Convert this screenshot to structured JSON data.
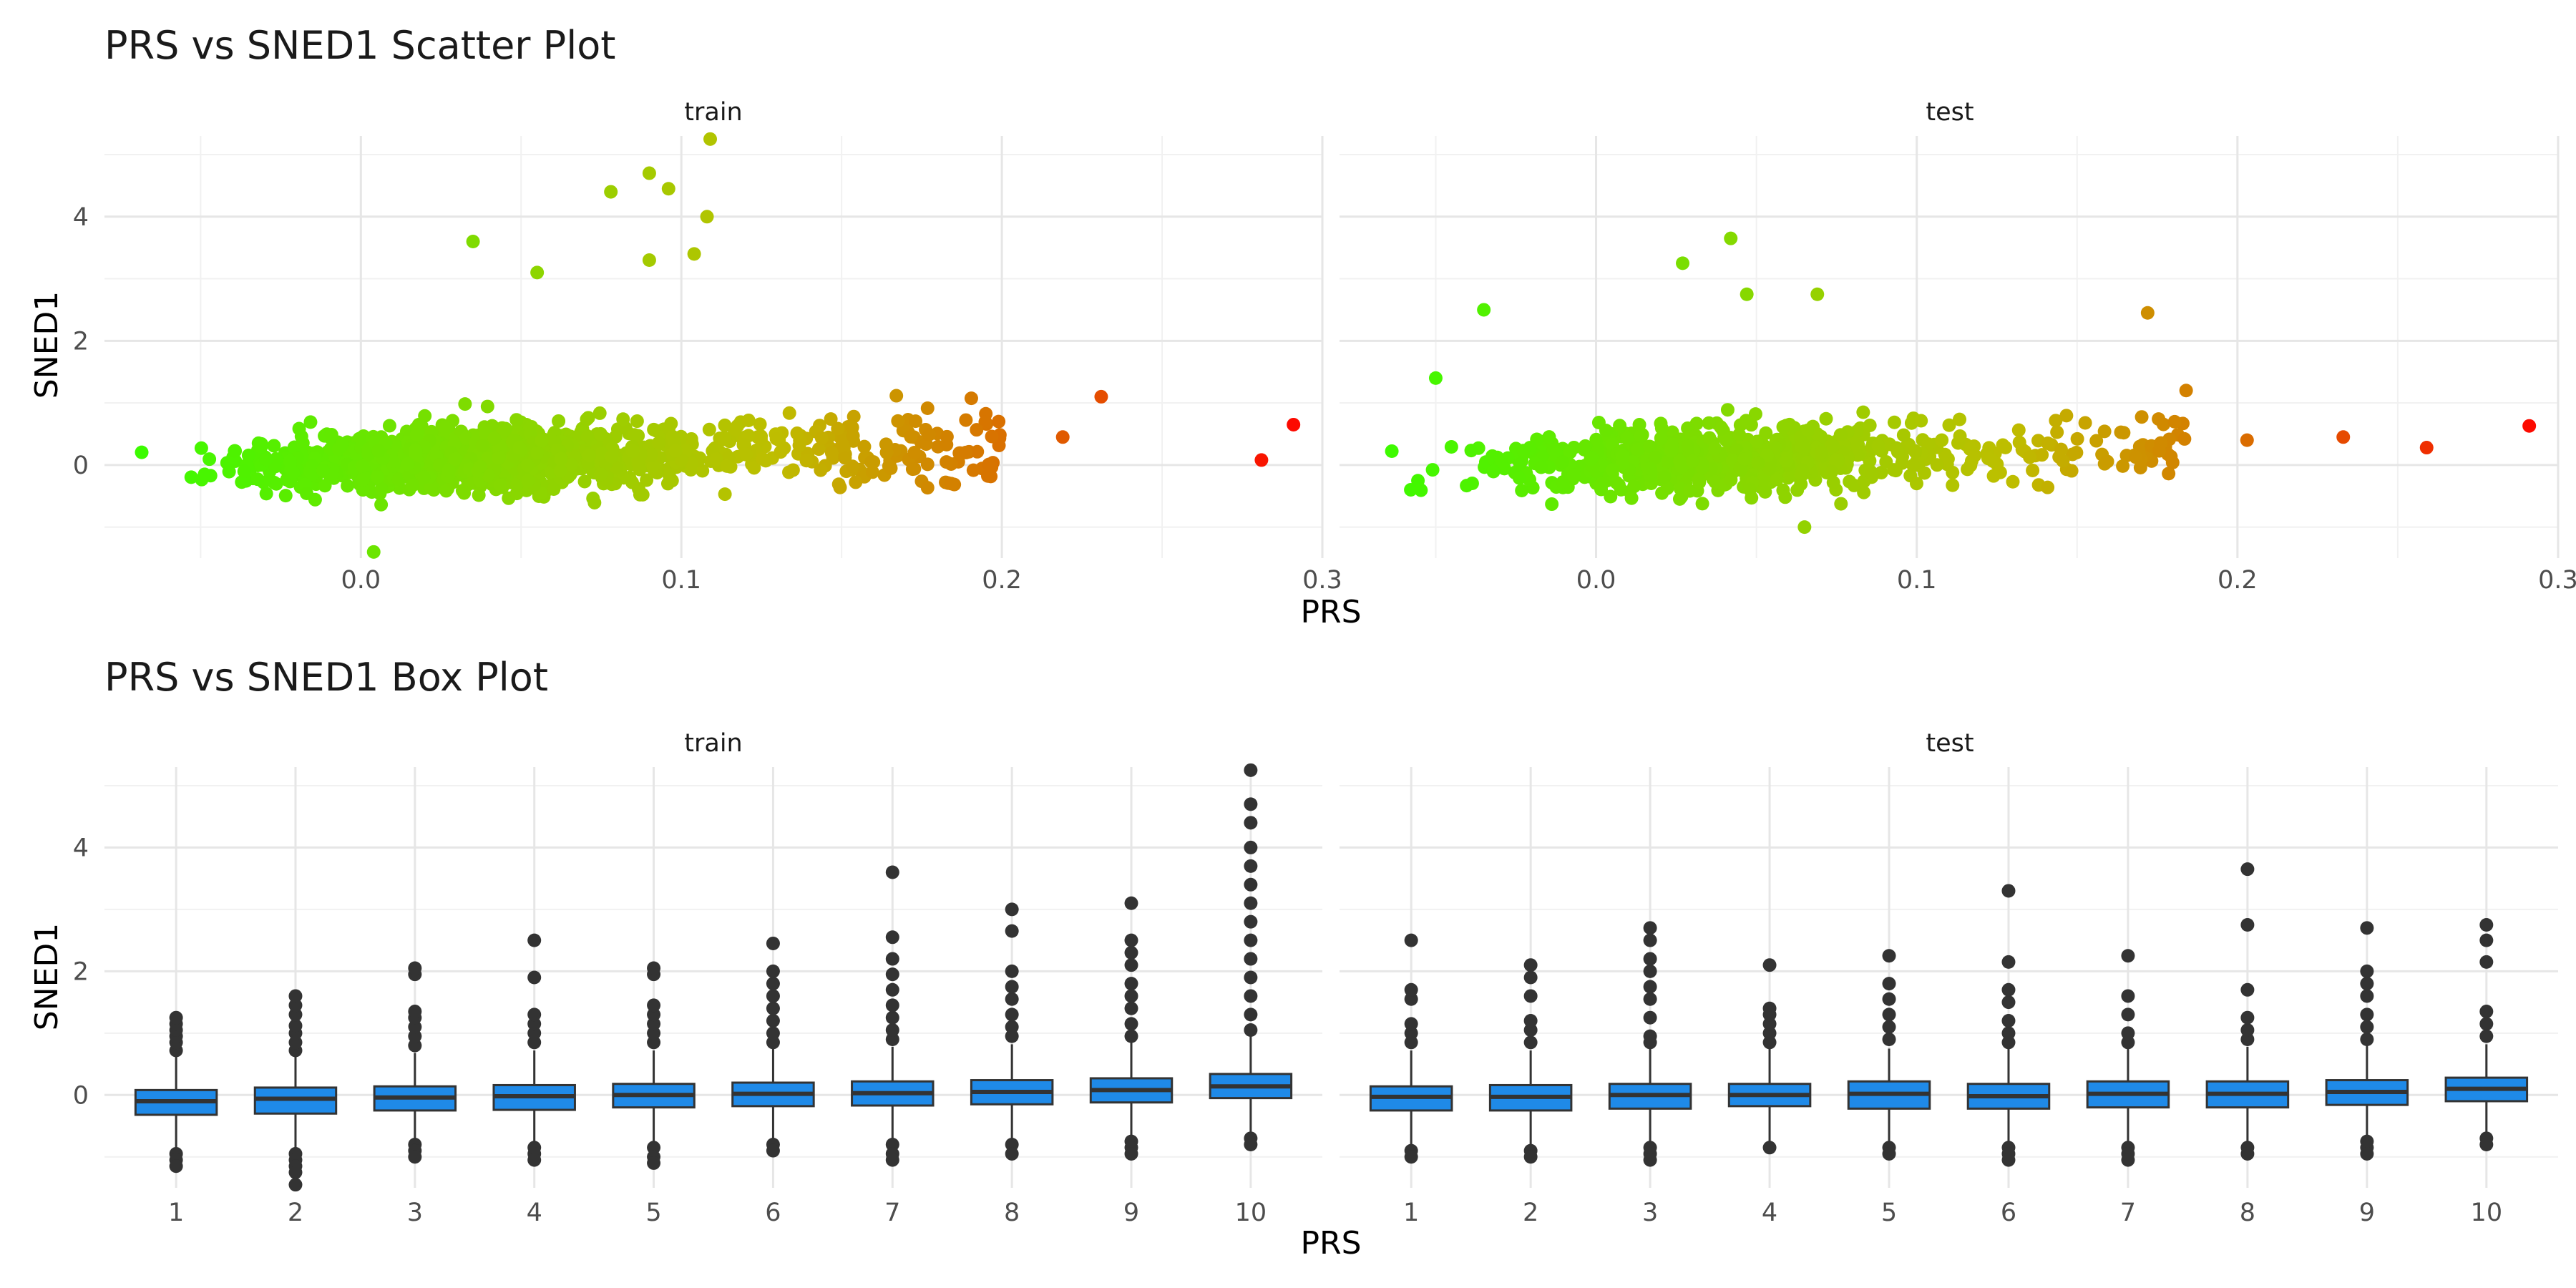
{
  "chart_data": [
    {
      "type": "scatter",
      "title": "PRS vs SNED1 Scatter Plot",
      "xlabel": "PRS",
      "ylabel": "SNED1",
      "panels": [
        "train",
        "test"
      ],
      "x_ticks": [
        "0.0",
        "0.1",
        "0.2",
        "0.3"
      ],
      "x_tick_values": [
        0.0,
        0.1,
        0.2,
        0.3
      ],
      "y_ticks": [
        "0",
        "2",
        "4"
      ],
      "y_tick_values": [
        0,
        2,
        4
      ],
      "xlim": [
        -0.08,
        0.3
      ],
      "ylim": [
        -1.5,
        5.3
      ],
      "grid": true,
      "legend": "none",
      "color_scale": {
        "low": "#33ff00",
        "high": "#ff0000",
        "domain": [
          -0.08,
          0.3
        ]
      },
      "notable_points": {
        "train": [
          [
            0.109,
            5.25
          ],
          [
            0.09,
            4.7
          ],
          [
            0.096,
            4.45
          ],
          [
            0.078,
            4.4
          ],
          [
            0.108,
            4.0
          ],
          [
            0.035,
            3.6
          ],
          [
            0.09,
            3.3
          ],
          [
            0.104,
            3.4
          ],
          [
            0.055,
            3.1
          ],
          [
            0.231,
            1.1
          ],
          [
            0.291,
            0.65
          ],
          [
            0.281,
            0.08
          ],
          [
            0.004,
            -1.4
          ],
          [
            0.219,
            0.45
          ],
          [
            0.199,
            0.7
          ]
        ],
        "test": [
          [
            0.042,
            3.65
          ],
          [
            0.027,
            3.25
          ],
          [
            0.047,
            2.75
          ],
          [
            0.069,
            2.75
          ],
          [
            -0.035,
            2.5
          ],
          [
            0.172,
            2.45
          ],
          [
            0.184,
            1.2
          ],
          [
            0.203,
            0.4
          ],
          [
            0.233,
            0.45
          ],
          [
            0.259,
            0.28
          ],
          [
            0.291,
            0.63
          ],
          [
            -0.05,
            1.4
          ],
          [
            0.065,
            -1.0
          ]
        ]
      }
    },
    {
      "type": "box",
      "title": "PRS vs SNED1 Box Plot",
      "xlabel": "PRS",
      "ylabel": "SNED1",
      "panels": [
        "train",
        "test"
      ],
      "categories": [
        "1",
        "2",
        "3",
        "4",
        "5",
        "6",
        "7",
        "8",
        "9",
        "10"
      ],
      "y_ticks": [
        "0",
        "2",
        "4"
      ],
      "y_tick_values": [
        0,
        2,
        4
      ],
      "ylim": [
        -1.5,
        5.3
      ],
      "grid": true,
      "box_fill": "#1f8ae8",
      "series": [
        {
          "panel": "train",
          "boxes": [
            {
              "q1": -0.32,
              "median": -0.1,
              "q3": 0.08,
              "low": -0.88,
              "high": 0.62,
              "outliers": [
                0.72,
                0.85,
                0.95,
                1.05,
                1.15,
                1.25,
                -0.95,
                -1.05,
                -1.15
              ]
            },
            {
              "q1": -0.3,
              "median": -0.06,
              "q3": 0.12,
              "low": -0.88,
              "high": 0.62,
              "outliers": [
                0.72,
                0.85,
                1.0,
                1.12,
                1.3,
                1.45,
                1.6,
                -0.95,
                -1.05,
                -1.15,
                -1.25,
                -1.45
              ]
            },
            {
              "q1": -0.25,
              "median": -0.04,
              "q3": 0.14,
              "low": -0.75,
              "high": 0.68,
              "outliers": [
                0.8,
                0.95,
                1.1,
                1.25,
                1.35,
                1.95,
                2.05,
                -0.8,
                -0.9,
                -1.0
              ]
            },
            {
              "q1": -0.24,
              "median": -0.02,
              "q3": 0.16,
              "low": -0.8,
              "high": 0.72,
              "outliers": [
                0.85,
                1.0,
                1.15,
                1.3,
                1.9,
                2.5,
                -0.85,
                -0.95,
                -1.05
              ]
            },
            {
              "q1": -0.2,
              "median": 0.0,
              "q3": 0.18,
              "low": -0.75,
              "high": 0.72,
              "outliers": [
                0.85,
                1.0,
                1.15,
                1.3,
                1.45,
                1.95,
                2.05,
                -0.85,
                -1.0,
                -1.1
              ]
            },
            {
              "q1": -0.18,
              "median": 0.02,
              "q3": 0.2,
              "low": -0.72,
              "high": 0.75,
              "outliers": [
                0.85,
                1.0,
                1.2,
                1.4,
                1.6,
                1.8,
                2.0,
                2.45,
                -0.8,
                -0.9
              ]
            },
            {
              "q1": -0.17,
              "median": 0.03,
              "q3": 0.22,
              "low": -0.72,
              "high": 0.78,
              "outliers": [
                0.9,
                1.05,
                1.25,
                1.45,
                1.7,
                1.95,
                2.2,
                2.55,
                3.6,
                -0.8,
                -0.95,
                -1.05
              ]
            },
            {
              "q1": -0.15,
              "median": 0.05,
              "q3": 0.24,
              "low": -0.72,
              "high": 0.82,
              "outliers": [
                0.95,
                1.1,
                1.3,
                1.55,
                1.75,
                2.0,
                2.65,
                3.0,
                -0.8,
                -0.95
              ]
            },
            {
              "q1": -0.12,
              "median": 0.08,
              "q3": 0.27,
              "low": -0.7,
              "high": 0.85,
              "outliers": [
                0.95,
                1.15,
                1.4,
                1.6,
                1.8,
                2.1,
                2.3,
                2.5,
                3.1,
                -0.75,
                -0.85,
                -0.95
              ]
            },
            {
              "q1": -0.05,
              "median": 0.14,
              "q3": 0.34,
              "low": -0.65,
              "high": 0.95,
              "outliers": [
                1.05,
                1.3,
                1.6,
                1.9,
                2.2,
                2.5,
                2.8,
                3.1,
                3.4,
                3.7,
                4.0,
                4.4,
                4.7,
                5.25,
                -0.7,
                -0.8
              ]
            }
          ]
        },
        {
          "panel": "test",
          "boxes": [
            {
              "q1": -0.25,
              "median": -0.03,
              "q3": 0.14,
              "low": -0.85,
              "high": 0.72,
              "outliers": [
                0.85,
                1.0,
                1.15,
                1.55,
                1.7,
                2.5,
                -0.9,
                -1.0
              ]
            },
            {
              "q1": -0.25,
              "median": -0.03,
              "q3": 0.16,
              "low": -0.8,
              "high": 0.72,
              "outliers": [
                0.85,
                1.05,
                1.2,
                1.6,
                1.9,
                2.1,
                -0.9,
                -1.0
              ]
            },
            {
              "q1": -0.22,
              "median": 0.0,
              "q3": 0.18,
              "low": -0.8,
              "high": 0.75,
              "outliers": [
                0.85,
                0.95,
                1.25,
                1.55,
                1.75,
                2.0,
                2.2,
                2.5,
                2.7,
                -0.85,
                -0.95,
                -1.05
              ]
            },
            {
              "q1": -0.18,
              "median": 0.0,
              "q3": 0.18,
              "low": -0.8,
              "high": 0.75,
              "outliers": [
                0.85,
                1.0,
                1.15,
                1.3,
                1.4,
                2.1,
                -0.85
              ]
            },
            {
              "q1": -0.22,
              "median": 0.02,
              "q3": 0.22,
              "low": -0.8,
              "high": 0.75,
              "outliers": [
                0.9,
                1.1,
                1.3,
                1.55,
                1.8,
                2.25,
                -0.85,
                -0.95
              ]
            },
            {
              "q1": -0.22,
              "median": -0.02,
              "q3": 0.18,
              "low": -0.8,
              "high": 0.75,
              "outliers": [
                0.85,
                1.0,
                1.2,
                1.5,
                1.7,
                2.15,
                3.3,
                -0.85,
                -0.95,
                -1.05
              ]
            },
            {
              "q1": -0.2,
              "median": 0.02,
              "q3": 0.22,
              "low": -0.78,
              "high": 0.75,
              "outliers": [
                0.85,
                1.0,
                1.3,
                1.6,
                2.25,
                -0.85,
                -0.95,
                -1.05
              ]
            },
            {
              "q1": -0.2,
              "median": 0.02,
              "q3": 0.22,
              "low": -0.78,
              "high": 0.78,
              "outliers": [
                0.9,
                1.05,
                1.25,
                1.7,
                2.75,
                3.65,
                -0.85,
                -0.95
              ]
            },
            {
              "q1": -0.16,
              "median": 0.05,
              "q3": 0.24,
              "low": -0.72,
              "high": 0.8,
              "outliers": [
                0.9,
                1.1,
                1.3,
                1.6,
                1.8,
                2.0,
                2.7,
                -0.75,
                -0.85,
                -0.95
              ]
            },
            {
              "q1": -0.1,
              "median": 0.1,
              "q3": 0.28,
              "low": -0.65,
              "high": 0.82,
              "outliers": [
                0.95,
                1.15,
                1.35,
                2.15,
                2.5,
                2.75,
                -0.7,
                -0.8
              ]
            }
          ]
        }
      ]
    }
  ]
}
